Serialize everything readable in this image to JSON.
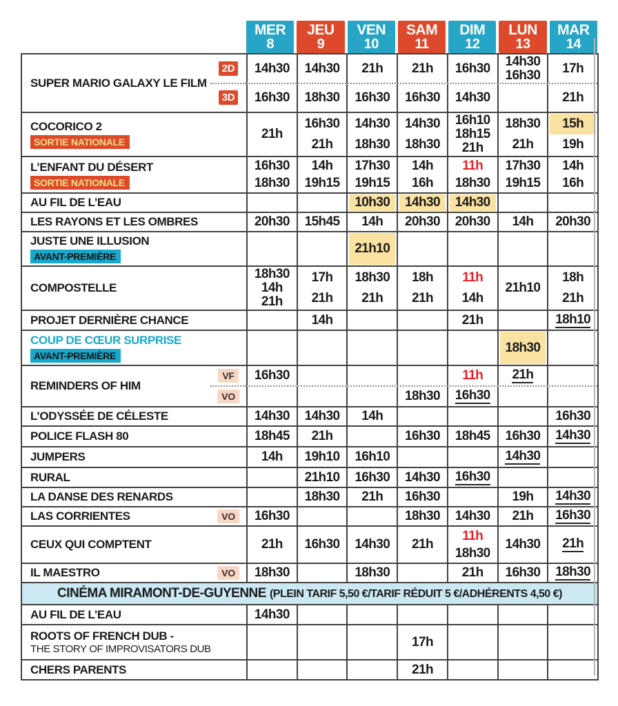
{
  "colors": {
    "teal": "#27A5C6",
    "teal2": "#18A8CB",
    "orange": "#DC4A2B",
    "yellow": "#FAE2A2",
    "pink": "#F8D8C4",
    "red": "#EC1C24",
    "band": "#CBE8F3",
    "line": "#414141"
  },
  "days": [
    {
      "label": "MER",
      "num": "8",
      "color": "teal"
    },
    {
      "label": "JEU",
      "num": "9",
      "color": "orange"
    },
    {
      "label": "VEN",
      "num": "10",
      "color": "teal"
    },
    {
      "label": "SAM",
      "num": "11",
      "color": "orange"
    },
    {
      "label": "DIM",
      "num": "12",
      "color": "teal"
    },
    {
      "label": "LUN",
      "num": "13",
      "color": "orange"
    },
    {
      "label": "MAR",
      "num": "14",
      "color": "teal"
    }
  ],
  "films": [
    {
      "title": "SUPER MARIO GALAXY LE FILM",
      "rows": [
        {
          "badge": "2D",
          "badge_style": "orange",
          "cells": [
            [
              "14h30"
            ],
            [
              "14h30"
            ],
            [
              "21h"
            ],
            [
              "21h"
            ],
            [
              "16h30"
            ],
            [
              "14h30",
              "16h30"
            ],
            [
              "17h"
            ]
          ]
        },
        {
          "badge": "3D",
          "badge_style": "orange",
          "cells": [
            [
              "16h30"
            ],
            [
              "18h30"
            ],
            [
              "16h30"
            ],
            [
              "16h30"
            ],
            [
              "14h30"
            ],
            [],
            [
              "21h"
            ]
          ]
        }
      ]
    },
    {
      "title": "COCORICO 2",
      "tag": "SORTIE NATIONALE",
      "tag_style": "orange",
      "rows": [
        {
          "cells": [
            [
              "21h"
            ],
            [
              "16h30",
              "21h"
            ],
            [
              "14h30",
              "18h30"
            ],
            [
              "14h30",
              "18h30"
            ],
            [
              "16h10",
              "18h15",
              "21h"
            ],
            [
              "18h30",
              "21h"
            ],
            [
              {
                "t": "15h",
                "style": "hl"
              },
              "19h"
            ]
          ]
        }
      ]
    },
    {
      "title": "L’ENFANT DU DÉSERT",
      "tag": "SORTIE NATIONALE",
      "tag_style": "orange",
      "rows": [
        {
          "cells": [
            [
              "16h30",
              "18h30"
            ],
            [
              "14h",
              "19h15"
            ],
            [
              "17h30",
              "19h15"
            ],
            [
              "14h",
              "16h"
            ],
            [
              {
                "t": "11h",
                "style": "red"
              },
              "18h30"
            ],
            [
              "17h30",
              "19h15"
            ],
            [
              "14h",
              "16h"
            ]
          ]
        }
      ]
    },
    {
      "title": "AU FIL DE L’EAU",
      "rows": [
        {
          "cells": [
            [],
            [],
            [
              {
                "t": "10h30",
                "style": "hl"
              }
            ],
            [
              {
                "t": "14h30",
                "style": "hl"
              }
            ],
            [
              {
                "t": "14h30",
                "style": "hl"
              }
            ],
            [],
            []
          ]
        }
      ]
    },
    {
      "title": "LES RAYONS ET LES OMBRES",
      "rows": [
        {
          "cells": [
            [
              "20h30"
            ],
            [
              "15h45"
            ],
            [
              "14h"
            ],
            [
              "20h30"
            ],
            [
              "20h30"
            ],
            [
              "14h"
            ],
            [
              "20h30"
            ]
          ]
        }
      ]
    },
    {
      "title": "JUSTE UNE ILLUSION",
      "tag": "AVANT-PREMIÈRE",
      "tag_style": "teal",
      "rows": [
        {
          "cells": [
            [],
            [],
            [
              {
                "t": "21h10",
                "style": "hl"
              }
            ],
            [],
            [],
            [],
            []
          ]
        }
      ]
    },
    {
      "title": "COMPOSTELLE",
      "rows": [
        {
          "cells": [
            [
              "18h30",
              "14h",
              "21h"
            ],
            [
              "17h",
              "21h"
            ],
            [
              "18h30",
              "21h"
            ],
            [
              "18h",
              "21h"
            ],
            [
              {
                "t": "11h",
                "style": "red"
              },
              "14h"
            ],
            [
              "21h10"
            ],
            [
              "18h",
              "21h"
            ]
          ]
        }
      ]
    },
    {
      "title": "PROJET DERNIÈRE CHANCE",
      "rows": [
        {
          "cells": [
            [],
            [
              "14h"
            ],
            [],
            [],
            [
              "21h"
            ],
            [],
            [
              {
                "t": "18h10",
                "style": "u"
              }
            ]
          ]
        }
      ]
    },
    {
      "title": "COUP DE CŒUR SURPRISE",
      "title_style": "teal",
      "tag": "AVANT-PREMIÈRE",
      "tag_style": "teal",
      "rows": [
        {
          "cells": [
            [],
            [],
            [],
            [],
            [],
            [
              {
                "t": "18h30",
                "style": "hl"
              }
            ],
            []
          ]
        }
      ]
    },
    {
      "title": "REMINDERS OF HIM",
      "rows": [
        {
          "badge": "VF",
          "badge_style": "pink",
          "cells": [
            [
              "16h30"
            ],
            [],
            [],
            [],
            [
              {
                "t": "11h",
                "style": "red"
              }
            ],
            [
              {
                "t": "21h",
                "style": "u"
              }
            ],
            []
          ]
        },
        {
          "badge": "VO",
          "badge_style": "pink",
          "cells": [
            [],
            [],
            [],
            [
              "18h30"
            ],
            [
              {
                "t": "16h30",
                "style": "u"
              }
            ],
            [],
            []
          ]
        }
      ]
    },
    {
      "title": "L’ODYSSÉE DE CÉLESTE",
      "rows": [
        {
          "cells": [
            [
              "14h30"
            ],
            [
              "14h30"
            ],
            [
              "14h"
            ],
            [],
            [],
            [],
            [
              "16h30"
            ]
          ]
        }
      ]
    },
    {
      "title": "POLICE FLASH 80",
      "rows": [
        {
          "cells": [
            [
              "18h45"
            ],
            [
              "21h"
            ],
            [],
            [
              "16h30"
            ],
            [
              "18h45"
            ],
            [
              "16h30"
            ],
            [
              {
                "t": "14h30",
                "style": "u"
              }
            ]
          ]
        }
      ]
    },
    {
      "title": "JUMPERS",
      "rows": [
        {
          "cells": [
            [
              "14h"
            ],
            [
              "19h10"
            ],
            [
              "16h10"
            ],
            [],
            [],
            [
              {
                "t": "14h30",
                "style": "u"
              }
            ],
            []
          ]
        }
      ]
    },
    {
      "title": "RURAL",
      "rows": [
        {
          "cells": [
            [],
            [
              "21h10"
            ],
            [
              "16h30"
            ],
            [
              "14h30"
            ],
            [
              {
                "t": "16h30",
                "style": "u"
              }
            ],
            [],
            []
          ]
        }
      ]
    },
    {
      "title": "LA DANSE DES RENARDS",
      "rows": [
        {
          "cells": [
            [],
            [
              "18h30"
            ],
            [
              "21h"
            ],
            [
              "16h30"
            ],
            [],
            [
              "19h"
            ],
            [
              {
                "t": "14h30",
                "style": "u"
              }
            ]
          ]
        }
      ]
    },
    {
      "title": "LAS CORRIENTES",
      "rows": [
        {
          "badge": "VO",
          "badge_style": "pink",
          "cells": [
            [
              "16h30"
            ],
            [],
            [],
            [
              "18h30"
            ],
            [
              "14h30"
            ],
            [
              "21h"
            ],
            [
              {
                "t": "16h30",
                "style": "u"
              }
            ]
          ]
        }
      ]
    },
    {
      "title": "CEUX QUI COMPTENT",
      "rows": [
        {
          "cells": [
            [
              "21h"
            ],
            [
              "16h30"
            ],
            [
              "14h30"
            ],
            [
              "21h"
            ],
            [
              {
                "t": "11h",
                "style": "red"
              },
              "18h30"
            ],
            [
              "14h30"
            ],
            [
              {
                "t": "21h",
                "style": "u"
              }
            ]
          ]
        }
      ]
    },
    {
      "title": "IL MAESTRO",
      "rows": [
        {
          "badge": "VO",
          "badge_style": "pink",
          "cells": [
            [
              "18h30"
            ],
            [],
            [
              "18h30"
            ],
            [],
            [
              "21h"
            ],
            [
              "16h30"
            ],
            [
              {
                "t": "18h30",
                "style": "u"
              }
            ]
          ]
        }
      ]
    }
  ],
  "band": {
    "name": "CINÉMA MIRAMONT-DE-GUYENNE",
    "tariff": "(PLEIN TARIF 5,50 €/TARIF RÉDUIT 5 €/ADHÉRENTS 4,50 €)"
  },
  "films2": [
    {
      "title": "AU FIL DE L’EAU",
      "rows": [
        {
          "cells": [
            [
              "14h30"
            ],
            [],
            [],
            [],
            [],
            [],
            []
          ]
        }
      ]
    },
    {
      "title": "ROOTS OF FRENCH DUB -",
      "subtitle": "THE STORY OF IMPROVISATORS DUB",
      "rows": [
        {
          "cells": [
            [],
            [],
            [],
            [
              "17h"
            ],
            [],
            [],
            []
          ]
        }
      ]
    },
    {
      "title": "CHERS PARENTS",
      "rows": [
        {
          "cells": [
            [],
            [],
            [],
            [
              "21h"
            ],
            [],
            [],
            []
          ]
        }
      ]
    }
  ]
}
